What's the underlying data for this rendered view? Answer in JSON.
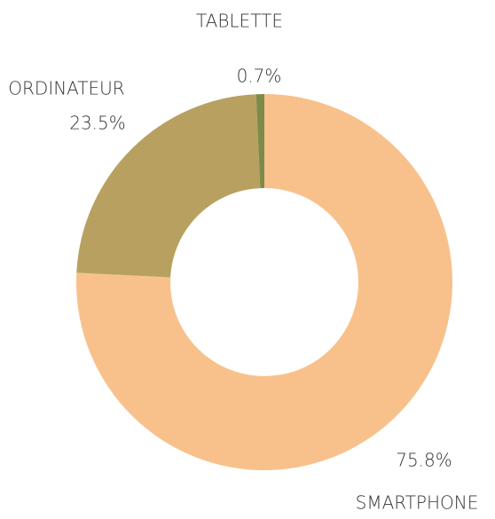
{
  "chart_data": {
    "type": "donut",
    "categories": [
      "SMARTPHONE",
      "ORDINATEUR",
      "TABLETTE"
    ],
    "values": [
      75.8,
      23.5,
      0.7
    ],
    "value_labels": [
      "75.8%",
      "23.5%",
      "0.7%"
    ],
    "colors": [
      "#f8c18b",
      "#b8a160",
      "#7d8b4a"
    ]
  }
}
